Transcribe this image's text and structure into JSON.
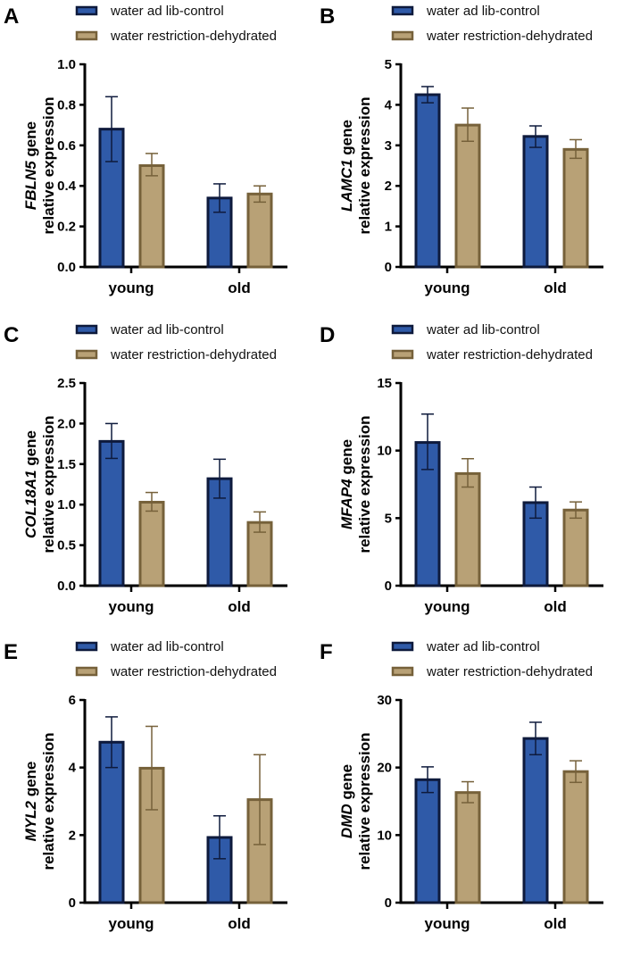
{
  "chart_data": [
    {
      "panel": "A",
      "type": "bar",
      "gene": "FBLN5",
      "ylabel_suffix": " gene",
      "ylabel_line2": "relative expression",
      "categories": [
        "young",
        "old"
      ],
      "ylim": [
        0,
        1.0
      ],
      "yticks": [
        0,
        0.2,
        0.4,
        0.6,
        0.8,
        1.0
      ],
      "tick_decimals": 1,
      "series": [
        {
          "name": "water ad lib-control",
          "values": [
            0.68,
            0.34
          ],
          "err_low": [
            0.52,
            0.27
          ],
          "err_high": [
            0.84,
            0.41
          ]
        },
        {
          "name": "water restriction-dehydrated",
          "values": [
            0.5,
            0.36
          ],
          "err_low": [
            0.45,
            0.32
          ],
          "err_high": [
            0.56,
            0.4
          ]
        }
      ]
    },
    {
      "panel": "B",
      "type": "bar",
      "gene": "LAMC1",
      "ylabel_suffix": " gene",
      "ylabel_line2": "relative expression",
      "categories": [
        "young",
        "old"
      ],
      "ylim": [
        0,
        5
      ],
      "yticks": [
        0,
        1,
        2,
        3,
        4,
        5
      ],
      "tick_decimals": 0,
      "series": [
        {
          "name": "water ad lib-control",
          "values": [
            4.25,
            3.22
          ],
          "err_low": [
            4.05,
            2.95
          ],
          "err_high": [
            4.45,
            3.48
          ]
        },
        {
          "name": "water restriction-dehydrated",
          "values": [
            3.5,
            2.9
          ],
          "err_low": [
            3.1,
            2.68
          ],
          "err_high": [
            3.92,
            3.14
          ]
        }
      ]
    },
    {
      "panel": "C",
      "type": "bar",
      "gene": "COL18A1",
      "ylabel_suffix": " gene",
      "ylabel_line2": "relative expression",
      "categories": [
        "young",
        "old"
      ],
      "ylim": [
        0,
        2.5
      ],
      "yticks": [
        0,
        0.5,
        1.0,
        1.5,
        2.0,
        2.5
      ],
      "tick_decimals": 1,
      "series": [
        {
          "name": "water ad lib-control",
          "values": [
            1.78,
            1.32
          ],
          "err_low": [
            1.57,
            1.08
          ],
          "err_high": [
            2.0,
            1.56
          ]
        },
        {
          "name": "water restriction-dehydrated",
          "values": [
            1.03,
            0.78
          ],
          "err_low": [
            0.92,
            0.66
          ],
          "err_high": [
            1.15,
            0.91
          ]
        }
      ]
    },
    {
      "panel": "D",
      "type": "bar",
      "gene": "MFAP4",
      "ylabel_suffix": " gene",
      "ylabel_line2": "relative expression",
      "categories": [
        "young",
        "old"
      ],
      "ylim": [
        0,
        15
      ],
      "yticks": [
        0,
        5,
        10,
        15
      ],
      "tick_decimals": 0,
      "series": [
        {
          "name": "water ad lib-control",
          "values": [
            10.6,
            6.15
          ],
          "err_low": [
            8.6,
            5.0
          ],
          "err_high": [
            12.7,
            7.3
          ]
        },
        {
          "name": "water restriction-dehydrated",
          "values": [
            8.3,
            5.6
          ],
          "err_low": [
            7.3,
            5.0
          ],
          "err_high": [
            9.4,
            6.2
          ]
        }
      ]
    },
    {
      "panel": "E",
      "type": "bar",
      "gene": "MYL2",
      "ylabel_suffix": " gene",
      "ylabel_line2": "relative expression",
      "categories": [
        "young",
        "old"
      ],
      "ylim": [
        0,
        6
      ],
      "yticks": [
        0,
        2,
        4,
        6
      ],
      "tick_decimals": 0,
      "series": [
        {
          "name": "water ad lib-control",
          "values": [
            4.75,
            1.93
          ],
          "err_low": [
            4.0,
            1.3
          ],
          "err_high": [
            5.5,
            2.57
          ]
        },
        {
          "name": "water restriction-dehydrated",
          "values": [
            3.98,
            3.05
          ],
          "err_low": [
            2.75,
            1.72
          ],
          "err_high": [
            5.22,
            4.38
          ]
        }
      ]
    },
    {
      "panel": "F",
      "type": "bar",
      "gene": "DMD",
      "ylabel_suffix": " gene",
      "ylabel_line2": "relative expression",
      "categories": [
        "young",
        "old"
      ],
      "ylim": [
        0,
        30
      ],
      "yticks": [
        0,
        10,
        20,
        30
      ],
      "tick_decimals": 0,
      "series": [
        {
          "name": "water ad lib-control",
          "values": [
            18.2,
            24.3
          ],
          "err_low": [
            16.3,
            21.9
          ],
          "err_high": [
            20.1,
            26.7
          ]
        },
        {
          "name": "water restriction-dehydrated",
          "values": [
            16.3,
            19.4
          ],
          "err_low": [
            14.8,
            17.8
          ],
          "err_high": [
            17.9,
            21.0
          ]
        }
      ]
    }
  ],
  "colors": {
    "control_fill": "#2f5aa8",
    "control_edge": "#0e1a3c",
    "dehyd_fill": "#b8a176",
    "dehyd_edge": "#76613a"
  }
}
